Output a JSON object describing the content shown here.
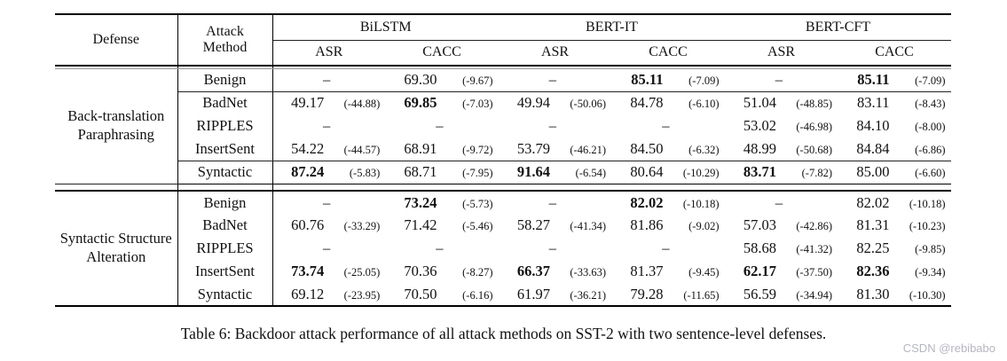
{
  "caption": "Table 6: Backdoor attack performance of all attack methods on SST-2 with two sentence-level defenses.",
  "watermark": {
    "text": "CSDN @rebibabo",
    "color": "#b6b6c2"
  },
  "table": {
    "header": {
      "defense_label": "Defense",
      "attack_method_label": "Attack Method",
      "model_groups": [
        "BiLSTM",
        "BERT-IT",
        "BERT-CFT"
      ],
      "metric_labels": [
        "ASR",
        "CACC"
      ]
    },
    "blocks": [
      {
        "defense": "Back-translation Paraphrasing",
        "rows": [
          {
            "method": "Benign",
            "rule_after": true,
            "cells": [
              {
                "v": "–",
                "d": ""
              },
              {
                "v": "69.30",
                "d": "(-9.67)"
              },
              {
                "v": "–",
                "d": ""
              },
              {
                "v": "85.11",
                "d": "(-7.09)",
                "bold": true
              },
              {
                "v": "–",
                "d": ""
              },
              {
                "v": "85.11",
                "d": "(-7.09)",
                "bold": true
              }
            ]
          },
          {
            "method": "BadNet",
            "cells": [
              {
                "v": "49.17",
                "d": "(-44.88)"
              },
              {
                "v": "69.85",
                "d": "(-7.03)",
                "bold": true
              },
              {
                "v": "49.94",
                "d": "(-50.06)"
              },
              {
                "v": "84.78",
                "d": "(-6.10)"
              },
              {
                "v": "51.04",
                "d": "(-48.85)"
              },
              {
                "v": "83.11",
                "d": "(-8.43)"
              }
            ]
          },
          {
            "method": "RIPPLES",
            "cells": [
              {
                "v": "–",
                "d": ""
              },
              {
                "v": "–",
                "d": ""
              },
              {
                "v": "–",
                "d": ""
              },
              {
                "v": "–",
                "d": ""
              },
              {
                "v": "53.02",
                "d": "(-46.98)"
              },
              {
                "v": "84.10",
                "d": "(-8.00)"
              }
            ]
          },
          {
            "method": "InsertSent",
            "rule_after": true,
            "cells": [
              {
                "v": "54.22",
                "d": "(-44.57)"
              },
              {
                "v": "68.91",
                "d": "(-9.72)"
              },
              {
                "v": "53.79",
                "d": "(-46.21)"
              },
              {
                "v": "84.50",
                "d": "(-6.32)"
              },
              {
                "v": "48.99",
                "d": "(-50.68)"
              },
              {
                "v": "84.84",
                "d": "(-6.86)"
              }
            ]
          },
          {
            "method": "Syntactic",
            "cells": [
              {
                "v": "87.24",
                "d": "(-5.83)",
                "bold": true
              },
              {
                "v": "68.71",
                "d": "(-7.95)"
              },
              {
                "v": "91.64",
                "d": "(-6.54)",
                "bold": true
              },
              {
                "v": "80.64",
                "d": "(-10.29)"
              },
              {
                "v": "83.71",
                "d": "(-7.82)",
                "bold": true
              },
              {
                "v": "85.00",
                "d": "(-6.60)"
              }
            ]
          }
        ]
      },
      {
        "defense": "Syntactic Structure Alteration",
        "rows": [
          {
            "method": "Benign",
            "cells": [
              {
                "v": "–",
                "d": ""
              },
              {
                "v": "73.24",
                "d": "(-5.73)",
                "bold": true
              },
              {
                "v": "–",
                "d": ""
              },
              {
                "v": "82.02",
                "d": "(-10.18)",
                "bold": true
              },
              {
                "v": "–",
                "d": ""
              },
              {
                "v": "82.02",
                "d": "(-10.18)"
              }
            ]
          },
          {
            "method": "BadNet",
            "cells": [
              {
                "v": "60.76",
                "d": "(-33.29)"
              },
              {
                "v": "71.42",
                "d": "(-5.46)"
              },
              {
                "v": "58.27",
                "d": "(-41.34)"
              },
              {
                "v": "81.86",
                "d": "(-9.02)"
              },
              {
                "v": "57.03",
                "d": "(-42.86)"
              },
              {
                "v": "81.31",
                "d": "(-10.23)"
              }
            ]
          },
          {
            "method": "RIPPLES",
            "cells": [
              {
                "v": "–",
                "d": ""
              },
              {
                "v": "–",
                "d": ""
              },
              {
                "v": "–",
                "d": ""
              },
              {
                "v": "–",
                "d": ""
              },
              {
                "v": "58.68",
                "d": "(-41.32)"
              },
              {
                "v": "82.25",
                "d": "(-9.85)"
              }
            ]
          },
          {
            "method": "InsertSent",
            "cells": [
              {
                "v": "73.74",
                "d": "(-25.05)",
                "bold": true
              },
              {
                "v": "70.36",
                "d": "(-8.27)"
              },
              {
                "v": "66.37",
                "d": "(-33.63)",
                "bold": true
              },
              {
                "v": "81.37",
                "d": "(-9.45)"
              },
              {
                "v": "62.17",
                "d": "(-37.50)",
                "bold": true
              },
              {
                "v": "82.36",
                "d": "(-9.34)",
                "bold": true
              }
            ]
          },
          {
            "method": "Syntactic",
            "cells": [
              {
                "v": "69.12",
                "d": "(-23.95)"
              },
              {
                "v": "70.50",
                "d": "(-6.16)"
              },
              {
                "v": "61.97",
                "d": "(-36.21)"
              },
              {
                "v": "79.28",
                "d": "(-11.65)"
              },
              {
                "v": "56.59",
                "d": "(-34.94)"
              },
              {
                "v": "81.30",
                "d": "(-10.30)"
              }
            ]
          }
        ]
      }
    ]
  }
}
